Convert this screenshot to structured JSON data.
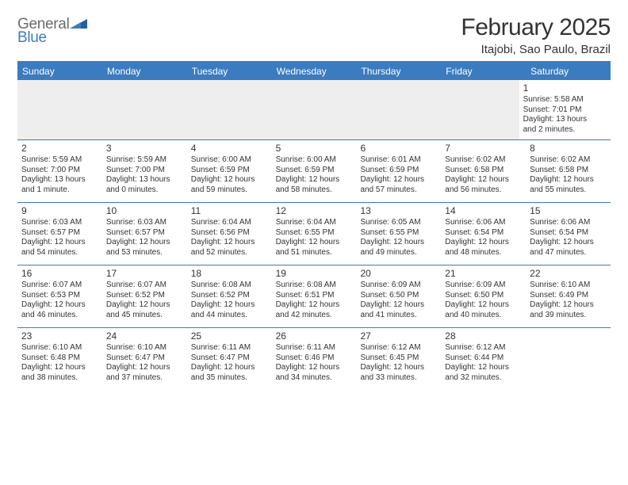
{
  "logo": {
    "general": "General",
    "blue": "Blue",
    "icon_color": "#235e9e"
  },
  "title": "February 2025",
  "location": "Itajobi, Sao Paulo, Brazil",
  "colors": {
    "accent": "#3b7bbf",
    "empty_bg": "#eeeeee",
    "text": "#333333",
    "logo_gray": "#6b6b6b"
  },
  "fonts": {
    "title_size": 30,
    "location_size": 15,
    "weekday_size": 12,
    "daynum_size": 12,
    "body_size": 10
  },
  "weekdays": [
    "Sunday",
    "Monday",
    "Tuesday",
    "Wednesday",
    "Thursday",
    "Friday",
    "Saturday"
  ],
  "weeks": [
    [
      null,
      null,
      null,
      null,
      null,
      null,
      {
        "n": "1",
        "sunrise": "Sunrise: 5:58 AM",
        "sunset": "Sunset: 7:01 PM",
        "daylight1": "Daylight: 13 hours",
        "daylight2": "and 2 minutes."
      }
    ],
    [
      {
        "n": "2",
        "sunrise": "Sunrise: 5:59 AM",
        "sunset": "Sunset: 7:00 PM",
        "daylight1": "Daylight: 13 hours",
        "daylight2": "and 1 minute."
      },
      {
        "n": "3",
        "sunrise": "Sunrise: 5:59 AM",
        "sunset": "Sunset: 7:00 PM",
        "daylight1": "Daylight: 13 hours",
        "daylight2": "and 0 minutes."
      },
      {
        "n": "4",
        "sunrise": "Sunrise: 6:00 AM",
        "sunset": "Sunset: 6:59 PM",
        "daylight1": "Daylight: 12 hours",
        "daylight2": "and 59 minutes."
      },
      {
        "n": "5",
        "sunrise": "Sunrise: 6:00 AM",
        "sunset": "Sunset: 6:59 PM",
        "daylight1": "Daylight: 12 hours",
        "daylight2": "and 58 minutes."
      },
      {
        "n": "6",
        "sunrise": "Sunrise: 6:01 AM",
        "sunset": "Sunset: 6:59 PM",
        "daylight1": "Daylight: 12 hours",
        "daylight2": "and 57 minutes."
      },
      {
        "n": "7",
        "sunrise": "Sunrise: 6:02 AM",
        "sunset": "Sunset: 6:58 PM",
        "daylight1": "Daylight: 12 hours",
        "daylight2": "and 56 minutes."
      },
      {
        "n": "8",
        "sunrise": "Sunrise: 6:02 AM",
        "sunset": "Sunset: 6:58 PM",
        "daylight1": "Daylight: 12 hours",
        "daylight2": "and 55 minutes."
      }
    ],
    [
      {
        "n": "9",
        "sunrise": "Sunrise: 6:03 AM",
        "sunset": "Sunset: 6:57 PM",
        "daylight1": "Daylight: 12 hours",
        "daylight2": "and 54 minutes."
      },
      {
        "n": "10",
        "sunrise": "Sunrise: 6:03 AM",
        "sunset": "Sunset: 6:57 PM",
        "daylight1": "Daylight: 12 hours",
        "daylight2": "and 53 minutes."
      },
      {
        "n": "11",
        "sunrise": "Sunrise: 6:04 AM",
        "sunset": "Sunset: 6:56 PM",
        "daylight1": "Daylight: 12 hours",
        "daylight2": "and 52 minutes."
      },
      {
        "n": "12",
        "sunrise": "Sunrise: 6:04 AM",
        "sunset": "Sunset: 6:55 PM",
        "daylight1": "Daylight: 12 hours",
        "daylight2": "and 51 minutes."
      },
      {
        "n": "13",
        "sunrise": "Sunrise: 6:05 AM",
        "sunset": "Sunset: 6:55 PM",
        "daylight1": "Daylight: 12 hours",
        "daylight2": "and 49 minutes."
      },
      {
        "n": "14",
        "sunrise": "Sunrise: 6:06 AM",
        "sunset": "Sunset: 6:54 PM",
        "daylight1": "Daylight: 12 hours",
        "daylight2": "and 48 minutes."
      },
      {
        "n": "15",
        "sunrise": "Sunrise: 6:06 AM",
        "sunset": "Sunset: 6:54 PM",
        "daylight1": "Daylight: 12 hours",
        "daylight2": "and 47 minutes."
      }
    ],
    [
      {
        "n": "16",
        "sunrise": "Sunrise: 6:07 AM",
        "sunset": "Sunset: 6:53 PM",
        "daylight1": "Daylight: 12 hours",
        "daylight2": "and 46 minutes."
      },
      {
        "n": "17",
        "sunrise": "Sunrise: 6:07 AM",
        "sunset": "Sunset: 6:52 PM",
        "daylight1": "Daylight: 12 hours",
        "daylight2": "and 45 minutes."
      },
      {
        "n": "18",
        "sunrise": "Sunrise: 6:08 AM",
        "sunset": "Sunset: 6:52 PM",
        "daylight1": "Daylight: 12 hours",
        "daylight2": "and 44 minutes."
      },
      {
        "n": "19",
        "sunrise": "Sunrise: 6:08 AM",
        "sunset": "Sunset: 6:51 PM",
        "daylight1": "Daylight: 12 hours",
        "daylight2": "and 42 minutes."
      },
      {
        "n": "20",
        "sunrise": "Sunrise: 6:09 AM",
        "sunset": "Sunset: 6:50 PM",
        "daylight1": "Daylight: 12 hours",
        "daylight2": "and 41 minutes."
      },
      {
        "n": "21",
        "sunrise": "Sunrise: 6:09 AM",
        "sunset": "Sunset: 6:50 PM",
        "daylight1": "Daylight: 12 hours",
        "daylight2": "and 40 minutes."
      },
      {
        "n": "22",
        "sunrise": "Sunrise: 6:10 AM",
        "sunset": "Sunset: 6:49 PM",
        "daylight1": "Daylight: 12 hours",
        "daylight2": "and 39 minutes."
      }
    ],
    [
      {
        "n": "23",
        "sunrise": "Sunrise: 6:10 AM",
        "sunset": "Sunset: 6:48 PM",
        "daylight1": "Daylight: 12 hours",
        "daylight2": "and 38 minutes."
      },
      {
        "n": "24",
        "sunrise": "Sunrise: 6:10 AM",
        "sunset": "Sunset: 6:47 PM",
        "daylight1": "Daylight: 12 hours",
        "daylight2": "and 37 minutes."
      },
      {
        "n": "25",
        "sunrise": "Sunrise: 6:11 AM",
        "sunset": "Sunset: 6:47 PM",
        "daylight1": "Daylight: 12 hours",
        "daylight2": "and 35 minutes."
      },
      {
        "n": "26",
        "sunrise": "Sunrise: 6:11 AM",
        "sunset": "Sunset: 6:46 PM",
        "daylight1": "Daylight: 12 hours",
        "daylight2": "and 34 minutes."
      },
      {
        "n": "27",
        "sunrise": "Sunrise: 6:12 AM",
        "sunset": "Sunset: 6:45 PM",
        "daylight1": "Daylight: 12 hours",
        "daylight2": "and 33 minutes."
      },
      {
        "n": "28",
        "sunrise": "Sunrise: 6:12 AM",
        "sunset": "Sunset: 6:44 PM",
        "daylight1": "Daylight: 12 hours",
        "daylight2": "and 32 minutes."
      },
      null
    ]
  ]
}
